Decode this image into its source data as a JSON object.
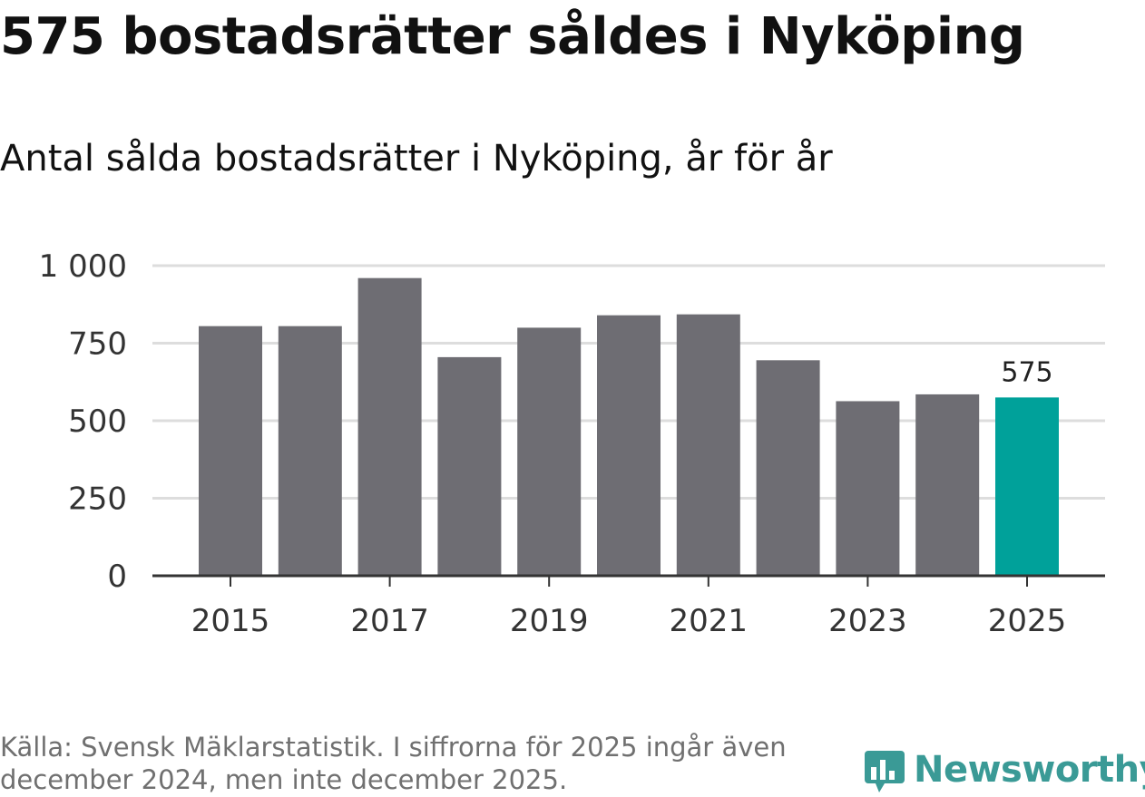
{
  "header": {
    "title": "575 bostadsrätter såldes i Nyköping",
    "subtitle": "Antal sålda bostadsrätter i Nyköping, år för år"
  },
  "chart_data": {
    "type": "bar",
    "categories": [
      "2015",
      "2016",
      "2017",
      "2018",
      "2019",
      "2020",
      "2021",
      "2022",
      "2023",
      "2024",
      "2025"
    ],
    "values": [
      805,
      805,
      960,
      705,
      800,
      840,
      843,
      695,
      563,
      585,
      575
    ],
    "x_tick_labels": [
      "2015",
      "2017",
      "2019",
      "2021",
      "2023",
      "2025"
    ],
    "y_ticks": [
      0,
      250,
      500,
      750,
      1000
    ],
    "y_tick_labels": [
      "0",
      "250",
      "500",
      "750",
      "1 000"
    ],
    "ylim": [
      0,
      1000
    ],
    "grid": true,
    "bar_color": "#6e6d73",
    "highlight_color": "#00a19a",
    "highlight_category": "2025",
    "data_labels": [
      {
        "category": "2025",
        "text": "575"
      }
    ]
  },
  "footer": {
    "source": "Källa: Svensk Mäklarstatistik. I siffrorna för 2025 ingår även december 2024, men inte december 2025."
  },
  "brand": {
    "name": "Newsworthy",
    "color": "#3a9a96",
    "icon": "newsworthy-logo-icon"
  }
}
